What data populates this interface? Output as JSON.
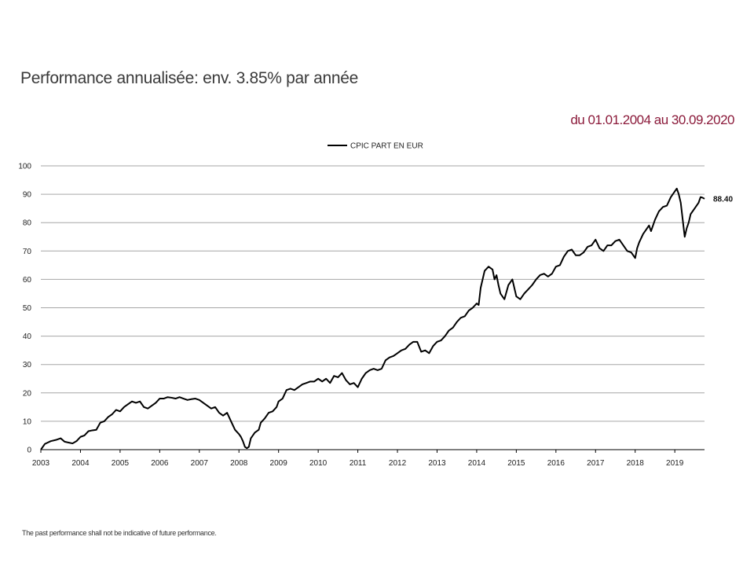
{
  "page": {
    "title": "Performance annualisée: env. 3.85% par année",
    "date_range": "du 01.01.2004 au 30.09.2020",
    "disclaimer": "The past performance shall not be indicative of future performance."
  },
  "colors": {
    "line": "#000000",
    "grid": "#a6a6a6",
    "date_range_text": "#8b1a3a"
  },
  "chart_data": {
    "type": "line",
    "title": "",
    "xlabel": "",
    "ylabel": "",
    "ylim": [
      0,
      100
    ],
    "xlim": [
      2003,
      2019.75
    ],
    "yticks": [
      "0",
      "10",
      "20",
      "30",
      "40",
      "50",
      "60",
      "70",
      "80",
      "90",
      "100"
    ],
    "xticks": [
      "2003",
      "2004",
      "2005",
      "2006",
      "2007",
      "2008",
      "2009",
      "2010",
      "2011",
      "2012",
      "2013",
      "2014",
      "2015",
      "2016",
      "2017",
      "2018",
      "2019"
    ],
    "grid": "horizontal",
    "legend": "top-center",
    "end_label": "88.40",
    "series": [
      {
        "name": "CPIC PART EN EUR",
        "x": [
          2003.0,
          2003.1,
          2003.25,
          2003.4,
          2003.5,
          2003.6,
          2003.7,
          2003.8,
          2003.9,
          2004.0,
          2004.1,
          2004.2,
          2004.3,
          2004.4,
          2004.5,
          2004.6,
          2004.7,
          2004.8,
          2004.9,
          2005.0,
          2005.1,
          2005.2,
          2005.3,
          2005.4,
          2005.5,
          2005.6,
          2005.7,
          2005.8,
          2005.9,
          2006.0,
          2006.1,
          2006.2,
          2006.3,
          2006.4,
          2006.5,
          2006.6,
          2006.7,
          2006.8,
          2006.9,
          2007.0,
          2007.1,
          2007.2,
          2007.3,
          2007.4,
          2007.5,
          2007.6,
          2007.7,
          2007.8,
          2007.9,
          2008.0,
          2008.05,
          2008.1,
          2008.15,
          2008.2,
          2008.25,
          2008.3,
          2008.4,
          2008.5,
          2008.55,
          2008.65,
          2008.75,
          2008.85,
          2008.95,
          2009.0,
          2009.1,
          2009.2,
          2009.3,
          2009.4,
          2009.5,
          2009.6,
          2009.7,
          2009.8,
          2009.9,
          2010.0,
          2010.1,
          2010.2,
          2010.3,
          2010.4,
          2010.5,
          2010.6,
          2010.7,
          2010.8,
          2010.9,
          2011.0,
          2011.1,
          2011.2,
          2011.3,
          2011.4,
          2011.5,
          2011.6,
          2011.7,
          2011.8,
          2011.9,
          2012.0,
          2012.1,
          2012.2,
          2012.3,
          2012.4,
          2012.5,
          2012.6,
          2012.7,
          2012.8,
          2012.9,
          2013.0,
          2013.1,
          2013.2,
          2013.3,
          2013.4,
          2013.5,
          2013.6,
          2013.7,
          2013.8,
          2013.9,
          2014.0,
          2014.05,
          2014.1,
          2014.2,
          2014.3,
          2014.4,
          2014.45,
          2014.5,
          2014.55,
          2014.6,
          2014.7,
          2014.8,
          2014.9,
          2015.0,
          2015.1,
          2015.2,
          2015.3,
          2015.4,
          2015.5,
          2015.6,
          2015.7,
          2015.8,
          2015.9,
          2016.0,
          2016.1,
          2016.2,
          2016.3,
          2016.4,
          2016.5,
          2016.6,
          2016.7,
          2016.8,
          2016.9,
          2017.0,
          2017.1,
          2017.2,
          2017.3,
          2017.4,
          2017.5,
          2017.6,
          2017.7,
          2017.8,
          2017.9,
          2018.0,
          2018.05,
          2018.1,
          2018.2,
          2018.3,
          2018.35,
          2018.4,
          2018.5,
          2018.6,
          2018.7,
          2018.8,
          2018.9,
          2019.0,
          2019.05,
          2019.1,
          2019.15,
          2019.2,
          2019.25,
          2019.3,
          2019.35,
          2019.4,
          2019.5,
          2019.6,
          2019.65,
          2019.7,
          2019.75
        ],
        "values": [
          0,
          2.0,
          3.0,
          3.5,
          4.0,
          2.8,
          2.5,
          2.2,
          3.0,
          4.5,
          5.0,
          6.5,
          6.8,
          7.0,
          9.5,
          10.0,
          11.5,
          12.5,
          14.0,
          13.5,
          15.0,
          16.0,
          17.0,
          16.5,
          17.0,
          15.0,
          14.5,
          15.5,
          16.5,
          18.0,
          18.0,
          18.5,
          18.3,
          18.0,
          18.5,
          18.0,
          17.5,
          17.8,
          18.0,
          17.5,
          16.5,
          15.5,
          14.5,
          15.0,
          13.0,
          12.0,
          13.0,
          10.0,
          7.0,
          5.5,
          4.5,
          3.0,
          1.0,
          0.5,
          1.0,
          4.0,
          6.0,
          7.0,
          9.5,
          11.0,
          13.0,
          13.5,
          15.0,
          17.0,
          18.0,
          21.0,
          21.5,
          21.0,
          22.0,
          23.0,
          23.5,
          24.0,
          24.0,
          25.0,
          24.0,
          25.0,
          23.5,
          26.0,
          25.5,
          27.0,
          24.5,
          23.0,
          23.5,
          22.0,
          25.0,
          27.0,
          28.0,
          28.5,
          28.0,
          28.5,
          31.5,
          32.5,
          33.0,
          34.0,
          35.0,
          35.5,
          37.0,
          38.0,
          38.0,
          34.5,
          35.0,
          34.0,
          36.5,
          38.0,
          38.5,
          40.0,
          42.0,
          43.0,
          45.0,
          46.5,
          47.0,
          49.0,
          50.0,
          51.5,
          51.0,
          57.0,
          63.0,
          64.5,
          63.5,
          60.0,
          61.5,
          58.0,
          55.0,
          53.0,
          58.0,
          60.0,
          54.0,
          53.0,
          55.0,
          56.5,
          58.0,
          60.0,
          61.5,
          62.0,
          61.0,
          62.0,
          64.5,
          65.0,
          68.0,
          70.0,
          70.5,
          68.5,
          68.5,
          69.5,
          71.5,
          72.0,
          74.0,
          71.0,
          70.0,
          72.0,
          72.0,
          73.5,
          74.0,
          72.0,
          70.0,
          69.5,
          67.5,
          71.0,
          73.0,
          76.0,
          78.0,
          79.0,
          77.0,
          81.0,
          84.0,
          85.5,
          86.0,
          89.0,
          91.0,
          92.0,
          90.0,
          87.0,
          81.0,
          75.0,
          78.0,
          80.0,
          83.0,
          85.0,
          87.0,
          89.0,
          88.8,
          88.4
        ]
      }
    ]
  }
}
